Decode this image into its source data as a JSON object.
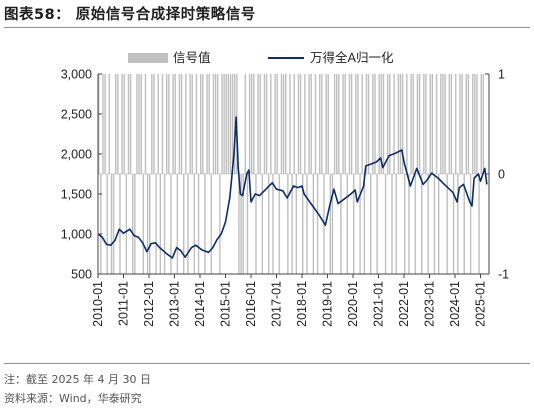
{
  "header": {
    "title": "图表58：  原始信号合成择时策略信号"
  },
  "footer": {
    "note": "注：截至 2025 年 4 月 30 日",
    "source": "资料来源：Wind，华泰研究"
  },
  "chart_data": {
    "type": "bar+line",
    "legend": {
      "signal_label": "信号值",
      "index_label": "万得全A归一化",
      "placement": "top"
    },
    "colors": {
      "signal": "#c0c0c0",
      "index": "#0b2d6b"
    },
    "x_ticks": [
      "2010-01",
      "2011-01",
      "2012-01",
      "2013-01",
      "2014-01",
      "2015-01",
      "2016-01",
      "2017-01",
      "2018-01",
      "2019-01",
      "2020-01",
      "2021-01",
      "2022-01",
      "2023-01",
      "2024-01",
      "2025-01"
    ],
    "left_axis": {
      "min": 500,
      "max": 3000,
      "ticks": [
        "500",
        "1,000",
        "1,500",
        "2,000",
        "2,500",
        "3,000"
      ],
      "tick_values": [
        500,
        1000,
        1500,
        2000,
        2500,
        3000
      ]
    },
    "right_axis": {
      "min": -1,
      "max": 1,
      "ticks": [
        "-1",
        "0",
        "1"
      ],
      "tick_values": [
        -1,
        0,
        1
      ]
    },
    "signal_series": {
      "name": "信号值",
      "start": "2010-01",
      "unit": "month",
      "values": [
        1,
        -1,
        1,
        1,
        -1,
        1,
        -1,
        -1,
        1,
        1,
        -1,
        1,
        1,
        -1,
        1,
        1,
        -1,
        -1,
        1,
        1,
        1,
        -1,
        1,
        -1,
        -1,
        1,
        1,
        -1,
        1,
        -1,
        1,
        -1,
        1,
        1,
        -1,
        1,
        1,
        -1,
        1,
        1,
        -1,
        1,
        -1,
        1,
        1,
        -1,
        1,
        -1,
        1,
        1,
        -1,
        1,
        1,
        -1,
        1,
        1,
        1,
        -1,
        1,
        1,
        1,
        1,
        1,
        1,
        1,
        1,
        -1,
        -1,
        -1,
        1,
        -1,
        1,
        1,
        1,
        -1,
        1,
        1,
        -1,
        1,
        1,
        -1,
        1,
        -1,
        1,
        1,
        -1,
        1,
        1,
        1,
        -1,
        1,
        -1,
        1,
        -1,
        1,
        1,
        -1,
        1,
        -1,
        1,
        1,
        -1,
        1,
        -1,
        1,
        1,
        -1,
        1,
        1,
        -1,
        -1,
        1,
        1,
        1,
        -1,
        1,
        1,
        -1,
        1,
        1,
        -1,
        1,
        1,
        -1,
        1,
        -1,
        1,
        1,
        -1,
        1,
        1,
        -1,
        1,
        1,
        1,
        -1,
        1,
        1,
        -1,
        1,
        -1,
        1,
        1,
        1,
        -1,
        1,
        -1,
        1,
        1,
        -1,
        1,
        1,
        -1,
        1,
        1,
        -1,
        1,
        1,
        -1,
        1,
        -1,
        1,
        1,
        1,
        -1,
        1,
        1,
        -1,
        1,
        -1,
        1,
        1,
        -1,
        1,
        1,
        -1,
        1,
        1,
        1,
        -1,
        1,
        1
      ]
    },
    "index_series": {
      "name": "万得全A归一化",
      "points": [
        [
          "2010-01",
          1000
        ],
        [
          "2010-03",
          960
        ],
        [
          "2010-05",
          870
        ],
        [
          "2010-07",
          860
        ],
        [
          "2010-09",
          920
        ],
        [
          "2010-11",
          1060
        ],
        [
          "2011-01",
          1010
        ],
        [
          "2011-04",
          1060
        ],
        [
          "2011-06",
          980
        ],
        [
          "2011-08",
          960
        ],
        [
          "2011-10",
          890
        ],
        [
          "2011-12",
          780
        ],
        [
          "2012-02",
          880
        ],
        [
          "2012-04",
          890
        ],
        [
          "2012-06",
          830
        ],
        [
          "2012-09",
          760
        ],
        [
          "2012-12",
          700
        ],
        [
          "2013-02",
          830
        ],
        [
          "2013-04",
          790
        ],
        [
          "2013-06",
          710
        ],
        [
          "2013-09",
          830
        ],
        [
          "2013-11",
          860
        ],
        [
          "2014-02",
          800
        ],
        [
          "2014-05",
          770
        ],
        [
          "2014-07",
          830
        ],
        [
          "2014-09",
          930
        ],
        [
          "2014-11",
          1000
        ],
        [
          "2015-01",
          1150
        ],
        [
          "2015-03",
          1450
        ],
        [
          "2015-05",
          2000
        ],
        [
          "2015-06",
          2460
        ],
        [
          "2015-07",
          1830
        ],
        [
          "2015-08",
          1500
        ],
        [
          "2015-09",
          1480
        ],
        [
          "2015-11",
          1750
        ],
        [
          "2015-12",
          1800
        ],
        [
          "2016-01",
          1400
        ],
        [
          "2016-03",
          1500
        ],
        [
          "2016-05",
          1480
        ],
        [
          "2016-08",
          1560
        ],
        [
          "2016-11",
          1640
        ],
        [
          "2017-01",
          1560
        ],
        [
          "2017-04",
          1540
        ],
        [
          "2017-06",
          1450
        ],
        [
          "2017-09",
          1600
        ],
        [
          "2017-11",
          1580
        ],
        [
          "2018-01",
          1600
        ],
        [
          "2018-02",
          1500
        ],
        [
          "2018-06",
          1350
        ],
        [
          "2018-09",
          1240
        ],
        [
          "2018-12",
          1110
        ],
        [
          "2019-02",
          1350
        ],
        [
          "2019-04",
          1560
        ],
        [
          "2019-06",
          1380
        ],
        [
          "2019-09",
          1440
        ],
        [
          "2019-12",
          1500
        ],
        [
          "2020-02",
          1550
        ],
        [
          "2020-03",
          1400
        ],
        [
          "2020-06",
          1600
        ],
        [
          "2020-07",
          1850
        ],
        [
          "2020-10",
          1880
        ],
        [
          "2020-12",
          1900
        ],
        [
          "2021-02",
          1950
        ],
        [
          "2021-03",
          1830
        ],
        [
          "2021-06",
          1980
        ],
        [
          "2021-09",
          2010
        ],
        [
          "2021-12",
          2050
        ],
        [
          "2022-01",
          1900
        ],
        [
          "2022-04",
          1600
        ],
        [
          "2022-07",
          1820
        ],
        [
          "2022-10",
          1620
        ],
        [
          "2022-12",
          1680
        ],
        [
          "2023-02",
          1760
        ],
        [
          "2023-05",
          1700
        ],
        [
          "2023-08",
          1620
        ],
        [
          "2023-10",
          1570
        ],
        [
          "2023-12",
          1520
        ],
        [
          "2024-02",
          1400
        ],
        [
          "2024-03",
          1580
        ],
        [
          "2024-05",
          1620
        ],
        [
          "2024-08",
          1400
        ],
        [
          "2024-09",
          1350
        ],
        [
          "2024-10",
          1700
        ],
        [
          "2024-12",
          1750
        ],
        [
          "2025-01",
          1660
        ],
        [
          "2025-03",
          1820
        ],
        [
          "2025-04",
          1620
        ]
      ]
    }
  }
}
